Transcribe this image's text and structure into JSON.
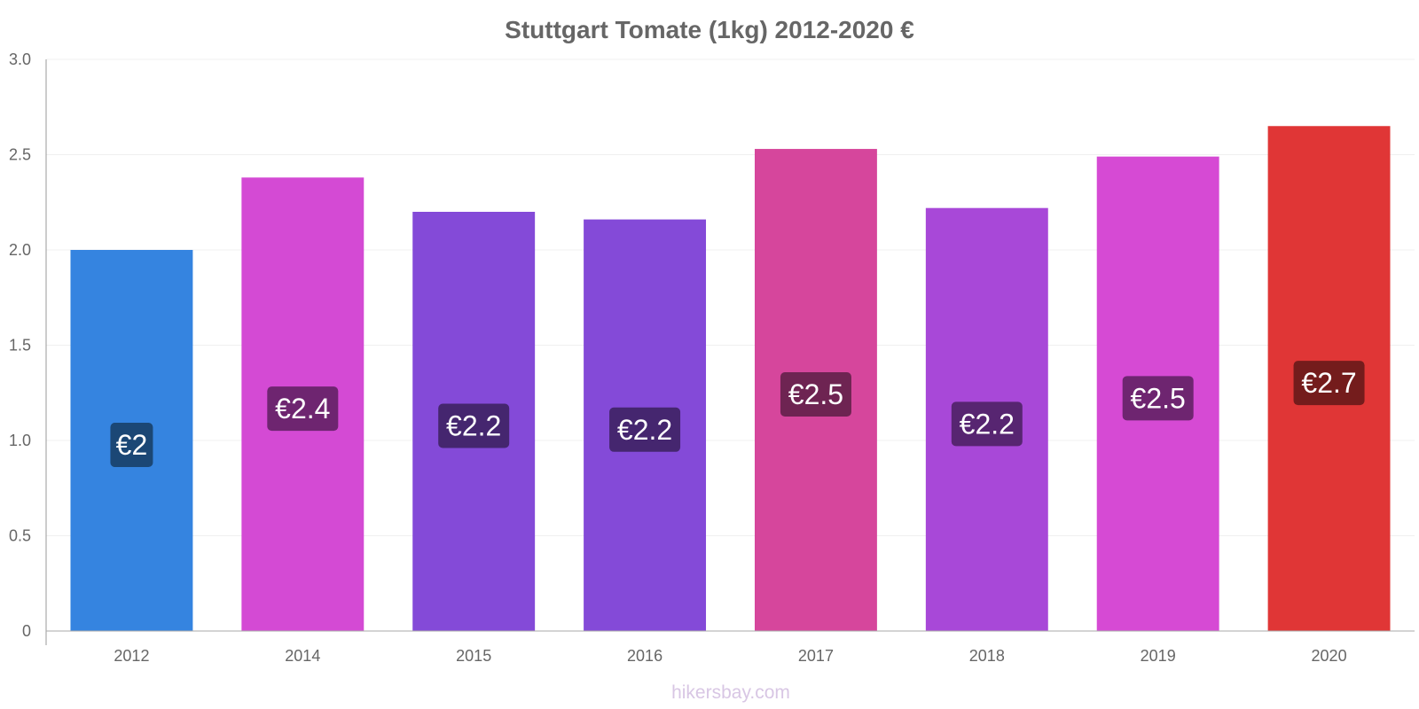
{
  "chart_data": {
    "type": "bar",
    "title": "Stuttgart Tomate (1kg) 2012-2020 €",
    "xlabel": "",
    "ylabel": "",
    "categories": [
      "2012",
      "2014",
      "2015",
      "2016",
      "2017",
      "2018",
      "2019",
      "2020"
    ],
    "values": [
      2.0,
      2.38,
      2.2,
      2.16,
      2.53,
      2.22,
      2.49,
      2.65
    ],
    "data_labels": [
      "€2",
      "€2.4",
      "€2.2",
      "€2.2",
      "€2.5",
      "€2.2",
      "€2.5",
      "€2.7"
    ],
    "bar_colors": [
      "#3584e0",
      "#d44ad4",
      "#844ad8",
      "#844ad8",
      "#d6469c",
      "#a848d8",
      "#d64ad4",
      "#e03636"
    ],
    "label_bg_colors": [
      "#1b4775",
      "#6e2570",
      "#45266f",
      "#45266f",
      "#6e2452",
      "#572571",
      "#6e2570",
      "#741c1c"
    ],
    "ylim": [
      0,
      3.0
    ],
    "yticks": [
      0,
      0.5,
      1.0,
      1.5,
      2.0,
      2.5,
      3.0
    ],
    "ytick_labels": [
      "0",
      "0.5",
      "1.0",
      "1.5",
      "2.0",
      "2.5",
      "3.0"
    ],
    "grid": true,
    "legend": "none"
  },
  "watermark": "hikersbay.com"
}
